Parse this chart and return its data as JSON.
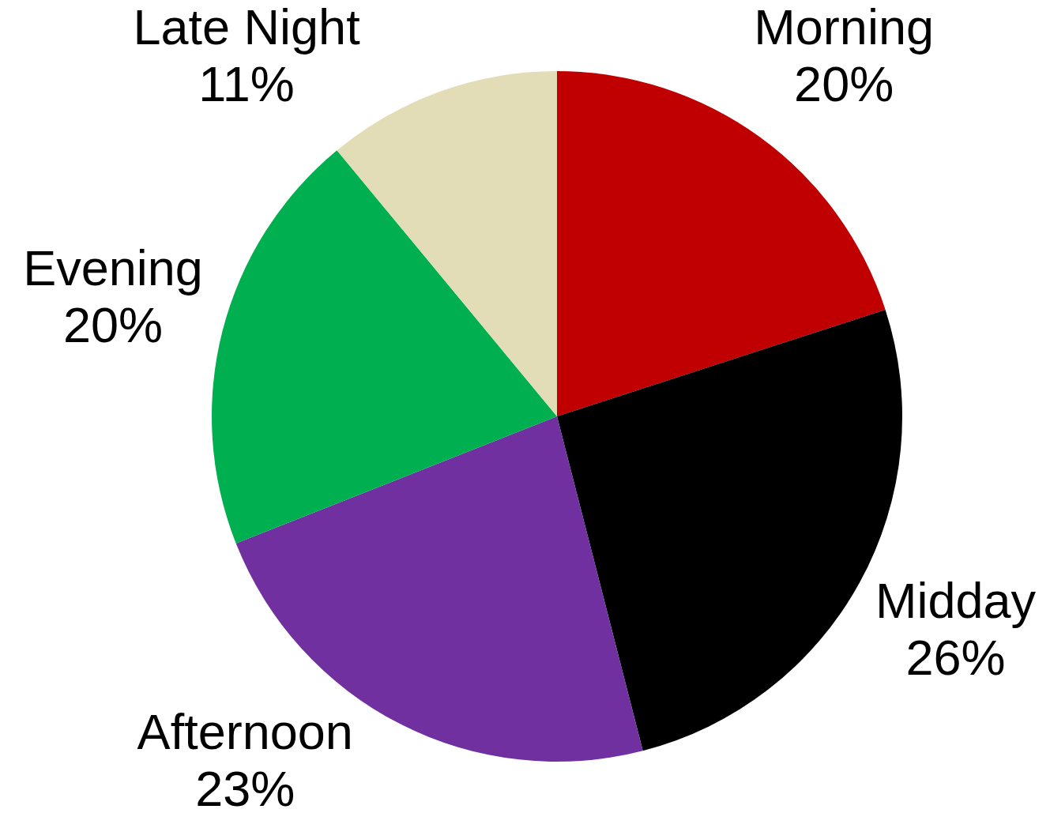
{
  "chart_data": {
    "type": "pie",
    "categories": [
      "Morning",
      "Midday",
      "Afternoon",
      "Evening",
      "Late Night"
    ],
    "values": [
      20,
      26,
      23,
      20,
      11
    ],
    "colors": [
      "#c00000",
      "#000000",
      "#7030a0",
      "#00b050",
      "#e3ddb7"
    ],
    "value_labels": [
      "20%",
      "26%",
      "23%",
      "20%",
      "11%"
    ]
  }
}
